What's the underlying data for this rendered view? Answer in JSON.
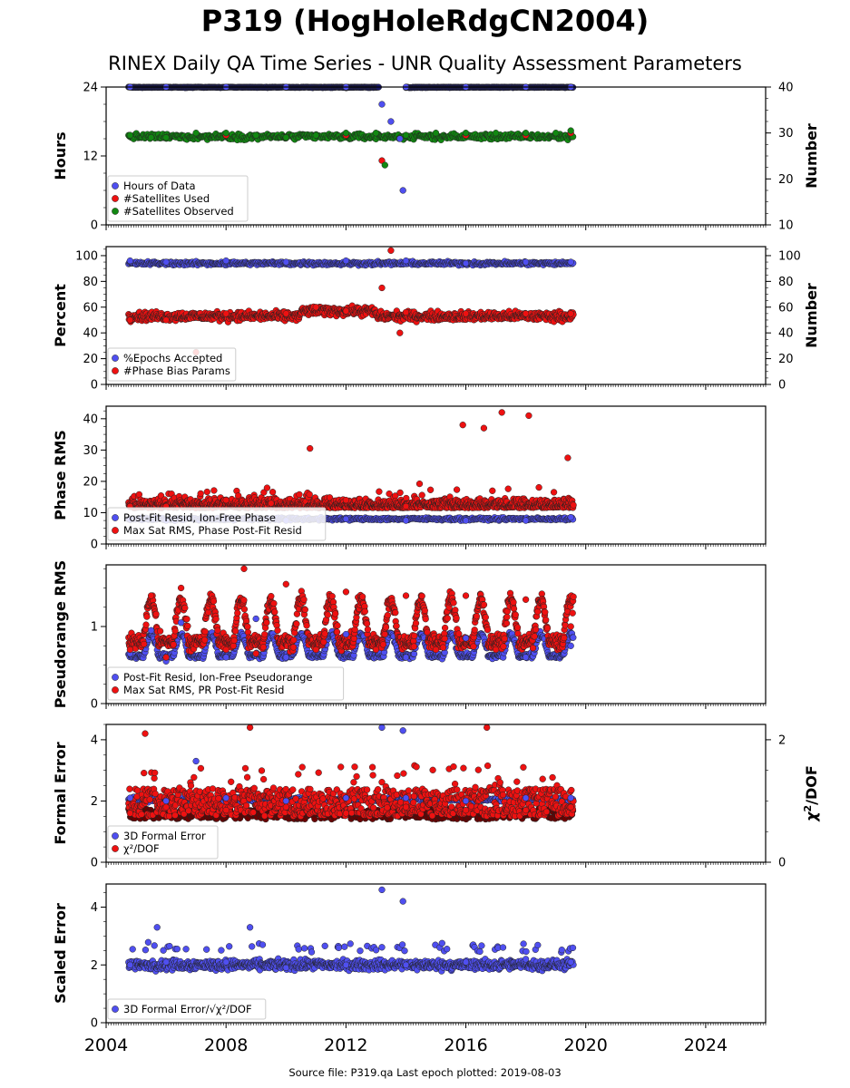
{
  "title": "P319 (HogHoleRdgCN2004)",
  "subtitle": "RINEX Daily QA Time Series - UNR Quality Assessment Parameters",
  "footer": "Source file: P319.qa Last epoch plotted: 2019-08-03",
  "colors": {
    "blue": "#4f4ff0",
    "red": "#ee1111",
    "green": "#118811"
  },
  "chart_data": [
    {
      "type": "scatter",
      "panel": "hours",
      "ylabel": "Hours",
      "ylabel_right": "Number",
      "xlim": [
        2004,
        2026
      ],
      "ylim": [
        0,
        24
      ],
      "yticks": [
        "0",
        "12",
        "24"
      ],
      "ylim_right": [
        10,
        40
      ],
      "yticks_right": [
        "10",
        "20",
        "30",
        "40"
      ],
      "legend_position": "lower-left",
      "series": [
        {
          "name": "Hours of Data",
          "color": "blue",
          "axis": "left",
          "x": [
            2004.8,
            2006,
            2008,
            2010,
            2012,
            2013.2,
            2013.5,
            2013.8,
            2013.9,
            2014,
            2016,
            2018,
            2019.5
          ],
          "y": [
            24,
            24,
            24,
            24,
            24,
            21,
            18,
            15,
            6,
            24,
            24,
            24,
            24
          ]
        },
        {
          "name": "#Satellites Used",
          "color": "red",
          "axis": "right",
          "x": [
            2004.8,
            2006,
            2008,
            2010,
            2012,
            2013.2,
            2014,
            2016,
            2018,
            2019.5
          ],
          "y": [
            29.5,
            29,
            29.5,
            29,
            29.5,
            24,
            29.5,
            29.5,
            29.5,
            30
          ]
        },
        {
          "name": "#Satellites Observed",
          "color": "green",
          "axis": "right",
          "x": [
            2004.8,
            2005.5,
            2006,
            2007,
            2008,
            2009,
            2010,
            2011,
            2012,
            2013,
            2013.3,
            2014,
            2015,
            2016,
            2017,
            2018,
            2019,
            2019.5
          ],
          "y": [
            29.5,
            29,
            29,
            30,
            30,
            29.5,
            29,
            29.5,
            30,
            30,
            23,
            29.5,
            30,
            30,
            30,
            30,
            30,
            30.5
          ]
        }
      ]
    },
    {
      "type": "scatter",
      "panel": "percent",
      "ylabel": "Percent",
      "ylabel_right": "Number",
      "xlim": [
        2004,
        2026
      ],
      "ylim": [
        0,
        107
      ],
      "yticks": [
        "0",
        "20",
        "40",
        "60",
        "80",
        "100"
      ],
      "yticks_right": [
        "0",
        "20",
        "40",
        "60",
        "80",
        "100"
      ],
      "legend_position": "lower-left",
      "series": [
        {
          "name": "%Epochs Accepted",
          "color": "blue",
          "x": [
            2004.8,
            2006,
            2008,
            2010,
            2012,
            2014,
            2016,
            2018,
            2019.5
          ],
          "y": [
            96,
            95,
            96,
            95,
            96,
            96,
            94,
            95,
            95
          ]
        },
        {
          "name": "#Phase Bias Params",
          "color": "red",
          "x": [
            2004.8,
            2006,
            2007,
            2008,
            2010,
            2011,
            2012,
            2013.2,
            2013.5,
            2013.8,
            2014,
            2016,
            2018,
            2019.5
          ],
          "y": [
            50,
            50,
            25,
            55,
            55,
            60,
            57,
            75,
            104,
            40,
            56,
            55,
            55,
            55
          ]
        }
      ]
    },
    {
      "type": "scatter",
      "panel": "phase-rms",
      "ylabel": "Phase RMS",
      "xlim": [
        2004,
        2026
      ],
      "ylim": [
        0,
        44
      ],
      "yticks": [
        "0",
        "10",
        "20",
        "30",
        "40"
      ],
      "legend_position": "lower-left",
      "series": [
        {
          "name": "Post-Fit Resid, Ion-Free Phase",
          "color": "blue",
          "x": [
            2004.8,
            2006,
            2008,
            2010,
            2012,
            2014,
            2016,
            2018,
            2019.5
          ],
          "y": [
            8,
            7.5,
            8,
            7.5,
            8,
            7.5,
            7.5,
            7.5,
            8.5
          ]
        },
        {
          "name": "Max Sat RMS, Phase Post-Fit Resid",
          "color": "red",
          "x": [
            2004.8,
            2006,
            2008,
            2009.5,
            2010.8,
            2012,
            2014,
            2015.9,
            2016.6,
            2017.2,
            2018.1,
            2019.4
          ],
          "y": [
            12,
            12,
            14,
            13,
            30.5,
            14,
            12,
            38,
            37,
            42,
            41,
            27.5
          ]
        }
      ]
    },
    {
      "type": "scatter",
      "panel": "pseudorange-rms",
      "ylabel": "Pseudorange RMS",
      "xlim": [
        2004,
        2026
      ],
      "ylim": [
        0,
        1.8
      ],
      "yticks": [
        "0",
        "1"
      ],
      "legend_position": "lower-left",
      "series": [
        {
          "name": "Post-Fit Resid, Ion-Free Pseudorange",
          "color": "blue",
          "x": [
            2004.8,
            2005.5,
            2006,
            2006.5,
            2008,
            2009,
            2010,
            2012,
            2014,
            2016,
            2018,
            2019.5
          ],
          "y": [
            0.65,
            0.95,
            0.55,
            1.05,
            0.6,
            1.1,
            0.6,
            0.9,
            0.6,
            0.85,
            0.6,
            0.75
          ]
        },
        {
          "name": "Max Sat RMS, PR Post-Fit Resid",
          "color": "red",
          "x": [
            2004.8,
            2005.5,
            2006,
            2006.5,
            2008,
            2008.6,
            2009,
            2010,
            2011,
            2012,
            2013,
            2014,
            2015,
            2016,
            2017,
            2018,
            2019.5
          ],
          "y": [
            0.7,
            1.4,
            0.6,
            1.5,
            0.7,
            1.75,
            0.65,
            1.55,
            0.7,
            1.45,
            0.7,
            1.4,
            0.7,
            1.4,
            0.7,
            1.35,
            1.0
          ]
        }
      ]
    },
    {
      "type": "scatter",
      "panel": "formal-error",
      "ylabel": "Formal Error",
      "ylabel_right": "χ²/DOF",
      "xlim": [
        2004,
        2026
      ],
      "ylim": [
        0,
        4.5
      ],
      "yticks": [
        "0",
        "2",
        "4"
      ],
      "yticks_right": [
        "0",
        "2"
      ],
      "legend_position": "lower-left",
      "series": [
        {
          "name": "3D Formal Error",
          "color": "blue",
          "x": [
            2004.8,
            2006,
            2007,
            2008,
            2010,
            2012,
            2013.2,
            2013.9,
            2014,
            2016,
            2018,
            2019.5
          ],
          "y": [
            2.1,
            2.0,
            3.3,
            2.1,
            2.0,
            2.1,
            4.4,
            4.3,
            2.1,
            2.0,
            2.1,
            2.1
          ]
        },
        {
          "name": "χ²/DOF",
          "color": "red",
          "x": [
            2004.8,
            2005.3,
            2006,
            2008,
            2008.8,
            2010,
            2012,
            2014,
            2016,
            2016.7,
            2018,
            2019.5
          ],
          "y": [
            1.6,
            4.2,
            1.8,
            1.7,
            4.4,
            1.8,
            1.6,
            1.8,
            1.7,
            4.4,
            1.7,
            1.8
          ]
        }
      ]
    },
    {
      "type": "scatter",
      "panel": "scaled-error",
      "ylabel": "Scaled Error",
      "xlim": [
        2004,
        2026
      ],
      "ylim": [
        0,
        4.8
      ],
      "yticks": [
        "0",
        "2",
        "4"
      ],
      "legend_position": "lower-left",
      "series": [
        {
          "name": "3D Formal Error/√χ²/DOF",
          "color": "blue",
          "x": [
            2004.8,
            2005.7,
            2006,
            2008,
            2008.8,
            2010,
            2012,
            2013.2,
            2013.9,
            2014,
            2016,
            2018,
            2019.5
          ],
          "y": [
            2.0,
            3.3,
            2.1,
            2.1,
            3.3,
            1.9,
            2.0,
            4.6,
            4.2,
            2.0,
            2.1,
            2.2,
            2.1
          ]
        }
      ]
    }
  ],
  "x_axis": {
    "ticks": [
      "2004",
      "2008",
      "2012",
      "2016",
      "2020",
      "2024"
    ]
  }
}
